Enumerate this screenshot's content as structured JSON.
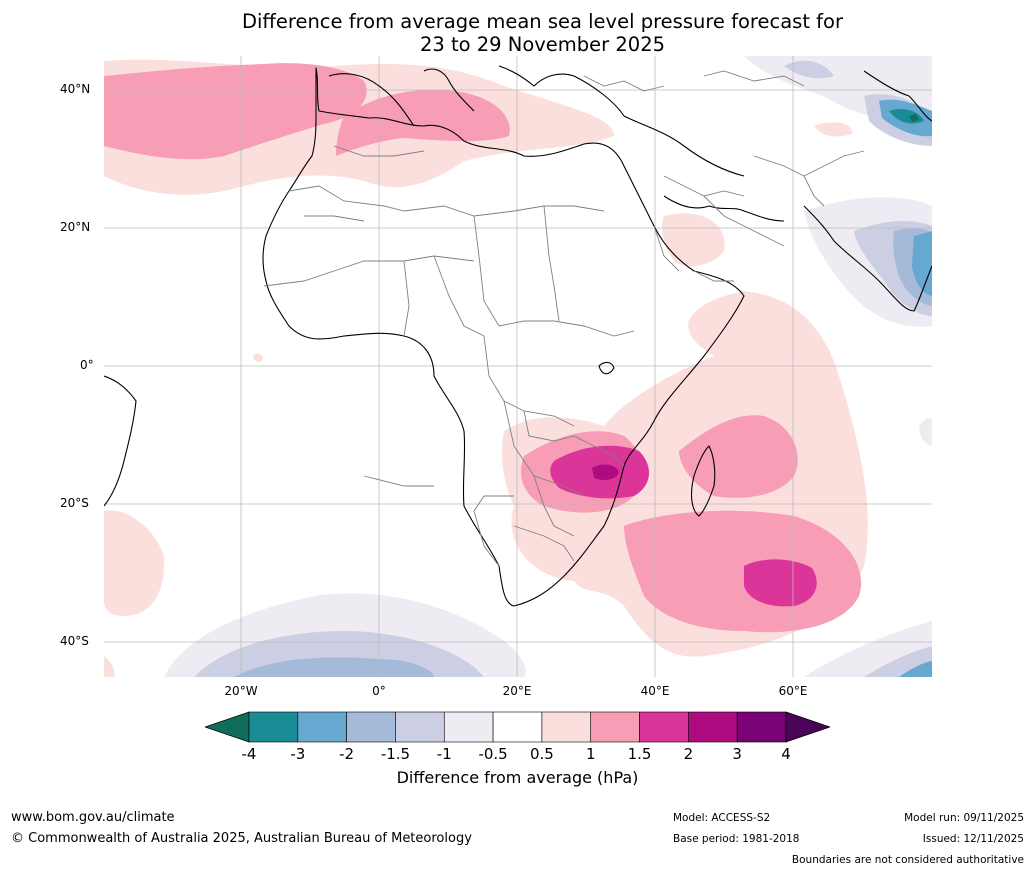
{
  "title": {
    "line1": "Difference from average mean sea level pressure forecast for",
    "line2": "23 to 29 November 2025"
  },
  "map": {
    "lat_labels": [
      "40°N",
      "20°N",
      "0°",
      "20°S",
      "40°S"
    ],
    "lon_labels": [
      "20°W",
      "0°",
      "20°E",
      "40°E",
      "60°E"
    ]
  },
  "colorbar": {
    "ticks": [
      "-4",
      "-3",
      "-2",
      "-1.5",
      "-1",
      "-0.5",
      "0.5",
      "1",
      "1.5",
      "2",
      "3",
      "4"
    ],
    "colors": [
      "#0f6e5a",
      "#1a8c96",
      "#67a8d0",
      "#a5b9d8",
      "#cccfe3",
      "#eeebf2",
      "#ffffff",
      "#fbdfdc",
      "#f79db5",
      "#db3599",
      "#ae0b80",
      "#7a0277",
      "#4a0358"
    ],
    "label": "Difference from average (hPa)"
  },
  "footer": {
    "website": "www.bom.gov.au/climate",
    "copyright": "© Commonwealth of Australia 2025, Australian Bureau of Meteorology",
    "model": "Model: ACCESS-S2",
    "base_period": "Base period: 1981-2018",
    "model_run": "Model run: 09/11/2025",
    "issued": "Issued: 12/11/2025",
    "disclaimer": "Boundaries are not considered authoritative"
  }
}
